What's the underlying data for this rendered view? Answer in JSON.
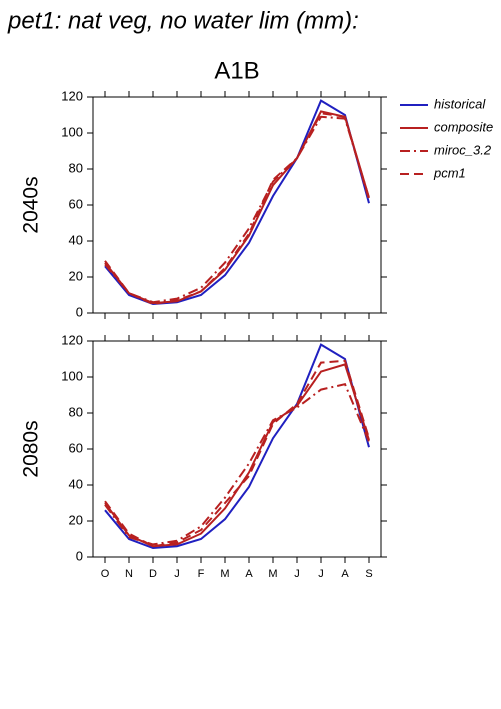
{
  "chart_data": [
    {
      "type": "line",
      "title": "pet1: nat veg, no water lim (mm):",
      "subtitle": "A1B",
      "ylabel": "2040s",
      "ylim": [
        0,
        120
      ],
      "yticks": [
        0,
        20,
        40,
        60,
        80,
        100,
        120
      ],
      "series": [
        {
          "name": "historical",
          "color": "#2020c0",
          "linestyle": "solid",
          "values": [
            26,
            10,
            5,
            6,
            10,
            21,
            39,
            65,
            86,
            118,
            110,
            61
          ]
        },
        {
          "name": "composite",
          "color": "#b82020",
          "linestyle": "solid",
          "values": [
            28,
            11,
            5.5,
            6.5,
            12,
            24,
            43,
            71,
            86,
            112,
            109,
            64
          ]
        },
        {
          "name": "miroc_3.2",
          "color": "#b82020",
          "linestyle": "dashdot",
          "values": [
            27,
            11,
            6,
            8,
            14,
            28,
            47,
            73,
            86,
            109,
            108,
            64
          ]
        },
        {
          "name": "pcm1",
          "color": "#b82020",
          "linestyle": "dashed",
          "values": [
            29,
            11,
            5,
            7,
            12,
            25,
            44,
            74,
            86,
            111,
            109,
            63
          ]
        }
      ]
    },
    {
      "type": "line",
      "ylabel": "2080s",
      "categories": [
        "O",
        "N",
        "D",
        "J",
        "F",
        "M",
        "A",
        "M",
        "J",
        "J",
        "A",
        "S"
      ],
      "ylim": [
        0,
        120
      ],
      "yticks": [
        0,
        20,
        40,
        60,
        80,
        100,
        120
      ],
      "series": [
        {
          "color": "#2020c0",
          "linestyle": "solid",
          "values": [
            26,
            10,
            5,
            6,
            10,
            21,
            39,
            66,
            85,
            118,
            110,
            61
          ]
        },
        {
          "color": "#b82020",
          "linestyle": "solid",
          "values": [
            30,
            12,
            6,
            7,
            13,
            27,
            47,
            75,
            84,
            103,
            107,
            65
          ]
        },
        {
          "color": "#b82020",
          "linestyle": "dashdot",
          "values": [
            29,
            11,
            7,
            9,
            17,
            33,
            52,
            76,
            83,
            93,
            96,
            64
          ]
        },
        {
          "color": "#b82020",
          "linestyle": "dashed",
          "values": [
            31,
            13,
            6,
            8,
            15,
            30,
            45,
            74,
            85,
            108,
            109,
            66
          ]
        }
      ]
    }
  ]
}
